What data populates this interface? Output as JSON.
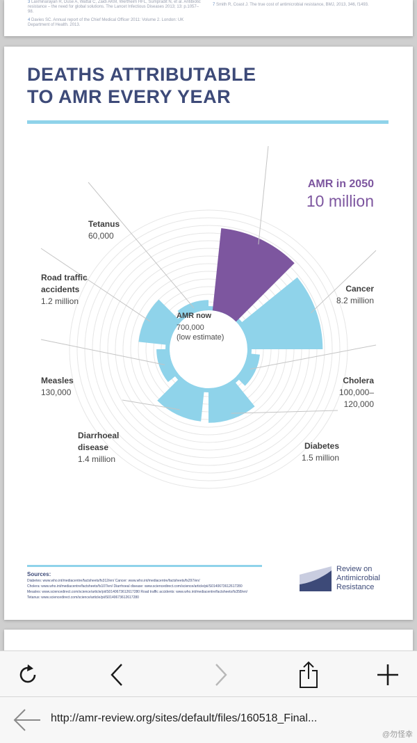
{
  "references": {
    "ref3": {
      "num": "3",
      "text": "Laxminarayan R, Duse A, Wattal C, Zaidi AKM, Wertheim HFL, Sumpradit N, et al. Antibiotic resistance – the need for global solutions. The Lancet Infectious Diseases 2013; 13: p.1057–98."
    },
    "ref4": {
      "num": "4",
      "text": "Davies SC. Annual report of the Chief Medical Officer 2011: Volume 2. London: UK Department of Health. 2013."
    },
    "ref7": {
      "num": "7",
      "text": "Smith R, Coast J. The true cost of antimicrobial resistance, BMJ, 2013, 346, f1493."
    }
  },
  "title_line1": "DEATHS ATTRIBUTABLE",
  "title_line2": "TO AMR EVERY YEAR",
  "chart_data": {
    "type": "polar-area",
    "center": {
      "label": "AMR now",
      "value": "700,000",
      "note": "(low estimate)"
    },
    "highlight": {
      "label": "AMR in 2050",
      "value": "10 million"
    },
    "colors": {
      "amr2050": "#7d569f",
      "others": "#8fd3ea",
      "grid": "#e6e6e6",
      "leader": "#c4c4c4"
    },
    "categories": [
      {
        "key": "amr2050",
        "name": "AMR in 2050",
        "value_text": "10 million",
        "value": 10000000
      },
      {
        "key": "cancer",
        "name": "Cancer",
        "value_text": "8.2 million",
        "value": 8200000
      },
      {
        "key": "cholera",
        "name": "Cholera",
        "value_text": "100,000–120,000",
        "value": 120000
      },
      {
        "key": "diabetes",
        "name": "Diabetes",
        "value_text": "1.5 million",
        "value": 1500000
      },
      {
        "key": "diarrhoeal",
        "name": "Diarrhoeal disease",
        "value_text": "1.4 million",
        "value": 1400000
      },
      {
        "key": "measles",
        "name": "Measles",
        "value_text": "130,000",
        "value": 130000
      },
      {
        "key": "road",
        "name": "Road traffic accidents",
        "value_text": "1.2 million",
        "value": 1200000
      },
      {
        "key": "tetanus",
        "name": "Tetanus",
        "value_text": "60,000",
        "value": 60000
      }
    ]
  },
  "labels": {
    "cancer": {
      "name": "Cancer",
      "value": "8.2 million"
    },
    "cholera": {
      "name": "Cholera",
      "value1": "100,000–",
      "value2": "120,000"
    },
    "diabetes": {
      "name": "Diabetes",
      "value": "1.5 million"
    },
    "diarrhoeal": {
      "name1": "Diarrhoeal",
      "name2": "disease",
      "value": "1.4 million"
    },
    "measles": {
      "name": "Measles",
      "value": "130,000"
    },
    "road": {
      "name1": "Road traffic",
      "name2": "accidents",
      "value": "1.2 million"
    },
    "tetanus": {
      "name": "Tetanus",
      "value": "60,000"
    }
  },
  "sources": {
    "heading": "Sources:",
    "line1": "Diabetes: www.who.int/mediacentre/factsheets/fs312/en/    Cancer: www.who.int/mediacentre/factsheets/fs297/en/",
    "line2": "Cholera: www.who.int/mediacentre/factsheets/fs107/en/    Diarrhoeal disease: www.sciencedirect.com/science/article/pii/S0140673612617280",
    "line3": "Measles: www.sciencedirect.com/science/article/pii/S0140673612617280    Road traffic accidents: www.who.int/mediacentre/factsheets/fs358/en/",
    "line4": "Tetanus: www.sciencedirect.com/science/article/pii/S0140673612617280"
  },
  "logo": {
    "line1": "Review on",
    "line2": "Antimicrobial",
    "line3": "Resistance",
    "color_dark": "#3d4a78",
    "color_light": "#c9cde0"
  },
  "browser": {
    "url": "http://amr-review.org/sites/default/files/160518_Final...",
    "watermark": "@勿怪幸"
  }
}
